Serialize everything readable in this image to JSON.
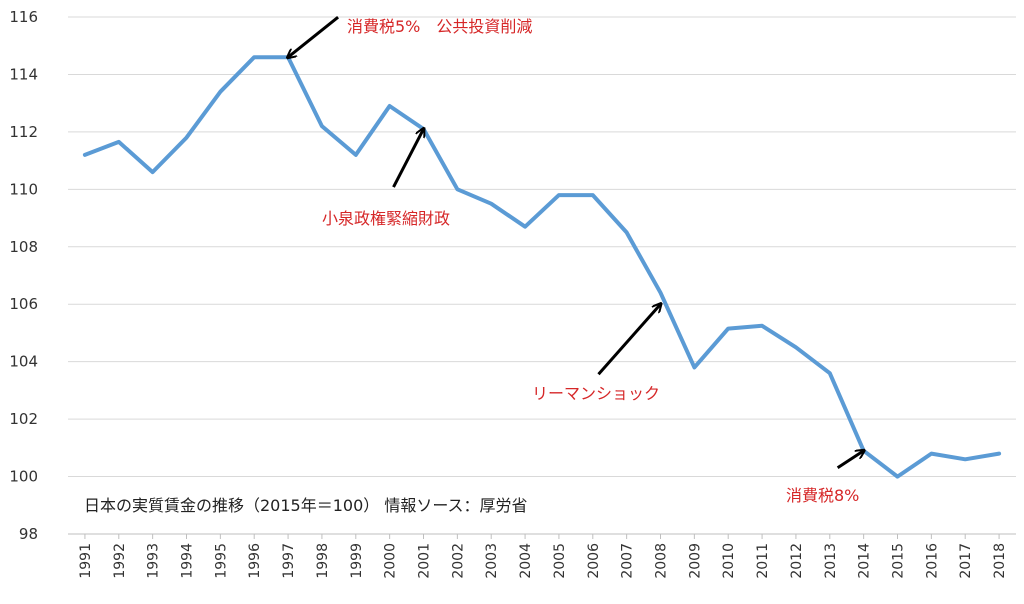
{
  "chart_data": {
    "type": "line",
    "title": "",
    "xlabel": "",
    "ylabel": "",
    "caption": "日本の実質賃金の推移（2015年＝100） 情報ソース：厚労省",
    "x": [
      "1991",
      "1992",
      "1993",
      "1994",
      "1995",
      "1996",
      "1997",
      "1998",
      "1999",
      "2000",
      "2001",
      "2002",
      "2003",
      "2004",
      "2005",
      "2006",
      "2007",
      "2008",
      "2009",
      "2010",
      "2011",
      "2012",
      "2013",
      "2014",
      "2015",
      "2016",
      "2017",
      "2018"
    ],
    "series": [
      {
        "values": [
          111.2,
          111.65,
          110.6,
          111.8,
          113.4,
          114.6,
          114.6,
          112.2,
          111.2,
          112.9,
          112.1,
          110.0,
          109.5,
          108.7,
          109.8,
          109.8,
          108.5,
          106.4,
          103.8,
          105.15,
          105.25,
          104.5,
          103.6,
          100.9,
          100.0,
          100.8,
          100.6,
          100.8
        ],
        "color": "#5b9bd5"
      }
    ],
    "ylim": [
      98,
      116
    ],
    "yticks": [
      98,
      100,
      102,
      104,
      106,
      108,
      110,
      112,
      114,
      116
    ],
    "grid": true,
    "annotations": [
      {
        "text": "消費税5%　公共投資削減",
        "year": "1997",
        "value": 114.6,
        "color": "#d62728"
      },
      {
        "text": "小泉政権緊縮財政",
        "year": "2001",
        "value": 112.1,
        "color": "#d62728"
      },
      {
        "text": "リーマンショック",
        "year": "2008",
        "value": 106.0,
        "color": "#d62728"
      },
      {
        "text": "消費税8%",
        "year": "2014",
        "value": 100.9,
        "color": "#d62728"
      }
    ],
    "gridColor": "#d9d9d9",
    "axisColor": "#bfbfbf",
    "arrowColor": "#000000"
  }
}
